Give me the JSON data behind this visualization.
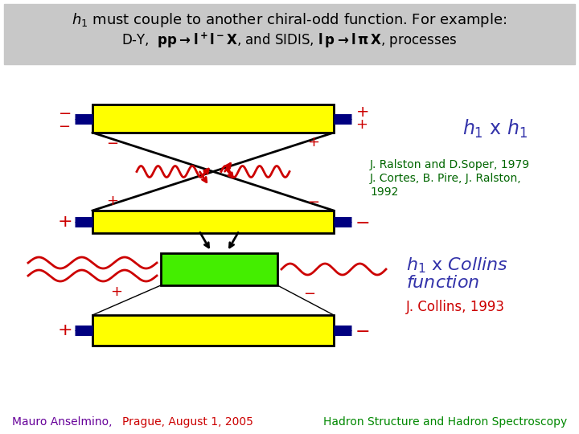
{
  "bg_color": "#c8c8c8",
  "white_bg": "#ffffff",
  "yellow": "#ffff00",
  "green": "#44ee00",
  "dark_blue": "#000080",
  "red": "#cc0000",
  "black": "#000000",
  "blue_label": "#3333aa",
  "green_ref": "#006600",
  "purple": "#660099",
  "footer_red": "#cc0000",
  "footer_green": "#008800",
  "label_ref1": "J. Ralston and D.Soper, 1979",
  "label_ref2": "J. Cortes, B. Pire, J. Ralston,",
  "label_ref3": "1992",
  "label_collins_ref": "J. Collins, 1993"
}
